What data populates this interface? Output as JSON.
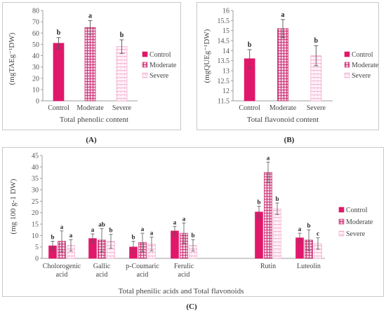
{
  "colors": {
    "control": "#e0176a",
    "moderate_fill": "#f5c7e0",
    "moderate_pattern": "#c2185b",
    "severe_fill": "#fff1f8",
    "severe_pattern": "#f3a6cc",
    "axis": "#9e9e9e",
    "error": "#555555",
    "letter": "#222222"
  },
  "chart_data": [
    {
      "panel": "(A)",
      "type": "bar",
      "title": "",
      "xlabel": "Total phenolic content",
      "ylabel": "(mgTAEg⁻¹DW)",
      "categories": [
        "Control",
        "Moderate",
        "Severe"
      ],
      "values": [
        51,
        65,
        48
      ],
      "errors": [
        5,
        6,
        6
      ],
      "letters": [
        "b",
        "a",
        "b"
      ],
      "series_styles": [
        "control",
        "moderate",
        "severe"
      ],
      "ylim": [
        0,
        80
      ],
      "yticks": [
        0,
        10,
        20,
        30,
        40,
        50,
        60,
        70,
        80
      ],
      "legend": [
        "Control",
        "Moderate",
        "Severe"
      ],
      "legend_position": "right",
      "grid": false
    },
    {
      "panel": "(B)",
      "type": "bar",
      "title": "",
      "xlabel": "Total flavonoid content",
      "ylabel": "(mgQUEg⁻¹DW)",
      "categories": [
        "Control",
        "Moderate",
        "Severe"
      ],
      "values": [
        13.6,
        15.1,
        13.75
      ],
      "errors": [
        0.45,
        0.45,
        0.5
      ],
      "letters": [
        "b",
        "a",
        "b"
      ],
      "series_styles": [
        "control",
        "moderate",
        "severe"
      ],
      "ylim": [
        11.5,
        16
      ],
      "yticks": [
        11.5,
        12,
        12.5,
        13,
        13.5,
        14,
        14.5,
        15,
        15.5,
        16
      ],
      "legend": [
        "Control",
        "Moderate",
        "Severe"
      ],
      "legend_position": "right",
      "grid": false
    },
    {
      "panel": "(C)",
      "type": "bar",
      "title": "",
      "xlabel": "Total phenilic acids and Total flavonoids",
      "ylabel": "(mg 100 g-1 DW)",
      "categories": [
        "Cholorogenic acid",
        "Gallic acid",
        "p-Coumaric acid",
        "Ferulic acid",
        "Rutin",
        "Luteolin"
      ],
      "series": [
        {
          "name": "Control",
          "style": "control",
          "values": [
            5.5,
            8.7,
            5.0,
            12.0,
            20.3,
            9.0
          ],
          "errors": [
            2,
            2,
            2.5,
            2,
            2.5,
            2
          ],
          "letters": [
            "b",
            "a",
            "b",
            "a",
            "b",
            "a"
          ]
        },
        {
          "name": "Moderate",
          "style": "moderate",
          "values": [
            7.5,
            8.0,
            7.0,
            11.0,
            37.6,
            8.0
          ],
          "errors": [
            4.5,
            5,
            4,
            4.5,
            4.5,
            4.5
          ],
          "letters": [
            "a",
            "ab",
            "a",
            "a",
            "a",
            "b"
          ]
        },
        {
          "name": "Severe",
          "style": "severe",
          "values": [
            5.7,
            7.5,
            6.3,
            5.7,
            21.7,
            6.5
          ],
          "errors": [
            2.5,
            3,
            3,
            2.5,
            2.5,
            2.5
          ],
          "letters": [
            "a",
            "b",
            "a",
            "b",
            "b",
            "c"
          ]
        }
      ],
      "ylim": [
        0,
        45
      ],
      "yticks": [
        0,
        5,
        10,
        15,
        20,
        25,
        30,
        35,
        40,
        45
      ],
      "legend": [
        "Control",
        "Moderate",
        "Severe"
      ],
      "legend_position": "right",
      "grid": false
    }
  ]
}
